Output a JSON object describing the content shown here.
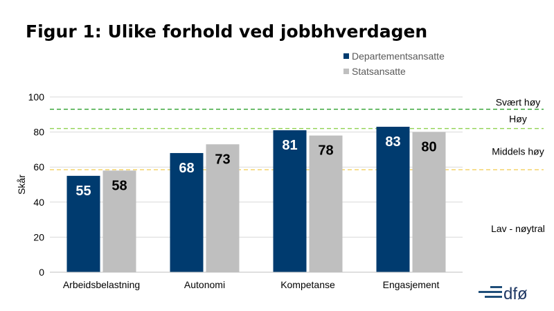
{
  "title": "Figur 1: Ulike forhold ved jobbhverdagen",
  "colors": {
    "series1": "#003b6f",
    "series2": "#bfbfbf",
    "grid": "#d9d9d9",
    "line_very_high": "#2ca02c",
    "line_high": "#8fd14f",
    "line_medium": "#f2c94c",
    "logo": "#1f4e79"
  },
  "chart_data": {
    "type": "bar",
    "title": "Figur 1: Ulike forhold ved jobbhverdagen",
    "xlabel": "",
    "ylabel": "Skår",
    "ylim": [
      0,
      100
    ],
    "yticks": [
      0,
      20,
      40,
      60,
      80,
      100
    ],
    "grid": true,
    "legend_position": "top-right",
    "categories": [
      "Arbeidsbelastning",
      "Autonomi",
      "Kompetanse",
      "Engasjement"
    ],
    "series": [
      {
        "name": "Departementsansatte",
        "values": [
          55,
          68,
          81,
          83
        ]
      },
      {
        "name": "Statsansatte",
        "values": [
          58,
          73,
          78,
          80
        ]
      }
    ],
    "reference_lines": [
      {
        "value": 93,
        "style": "dashed",
        "color": "#2ca02c"
      },
      {
        "value": 82,
        "style": "dashed",
        "color": "#8fd14f"
      },
      {
        "value": 58.5,
        "style": "dashed",
        "color": "#f2c94c"
      }
    ],
    "zone_labels": [
      {
        "label": "Svært høy",
        "value": 97
      },
      {
        "label": "Høy",
        "value": 87.5
      },
      {
        "label": "Middels høy",
        "value": 69
      },
      {
        "label": "Lav - nøytral",
        "value": 25
      }
    ]
  },
  "logo": {
    "text": "dfø"
  }
}
